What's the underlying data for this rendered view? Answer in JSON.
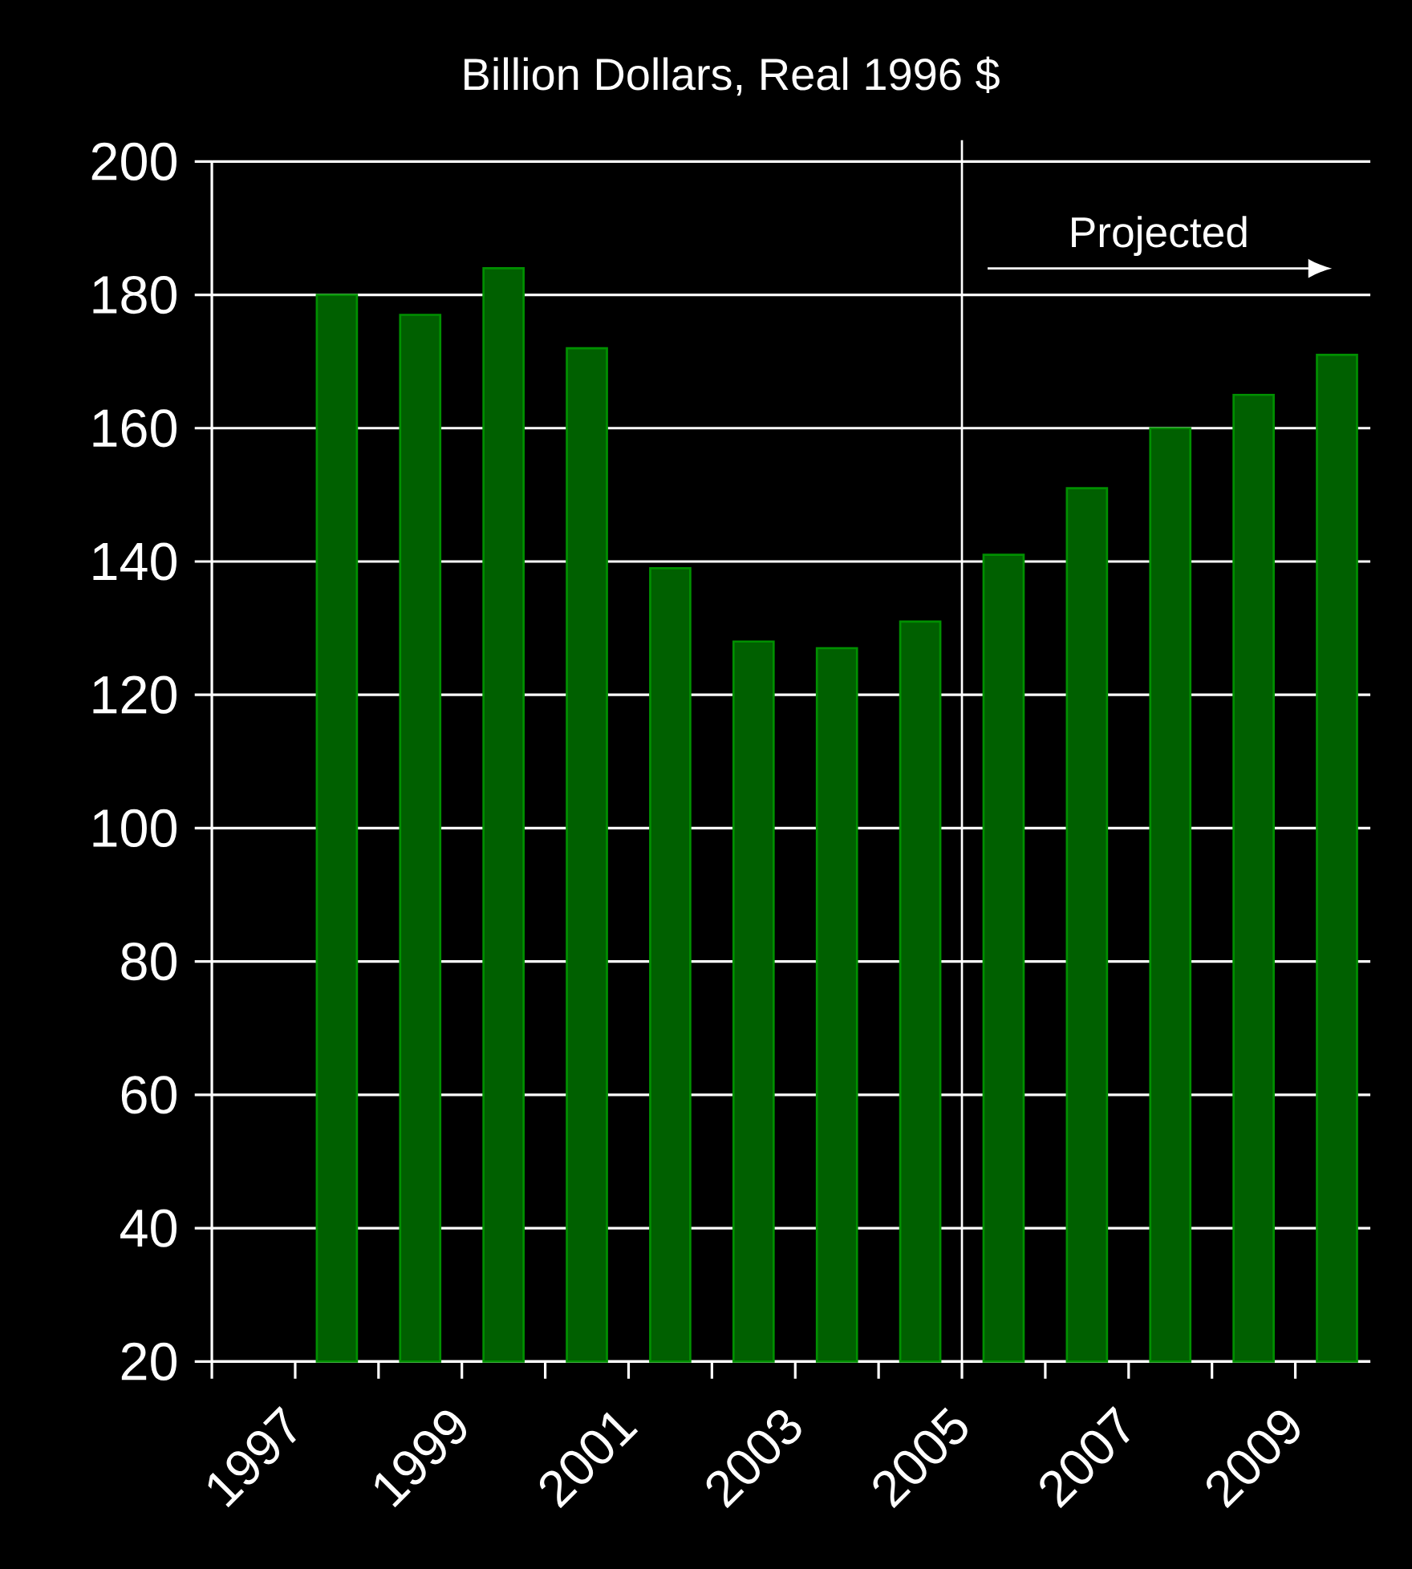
{
  "chart_data": {
    "type": "bar",
    "title": "Billion Dollars, Real 1996 $",
    "categories": [
      "1997",
      null,
      "1999",
      null,
      "2001",
      null,
      "2003",
      null,
      "2005",
      null,
      "2007",
      null,
      "2009",
      null
    ],
    "values": [
      null,
      180,
      177,
      184,
      172,
      139,
      128,
      127,
      131,
      141,
      151,
      160,
      165,
      171
    ],
    "color": "#006000",
    "ylim": [
      20,
      200
    ],
    "yticks": [
      20,
      40,
      60,
      80,
      100,
      120,
      140,
      160,
      180,
      200
    ],
    "grid": "y",
    "annotations": [
      "Projected"
    ]
  }
}
